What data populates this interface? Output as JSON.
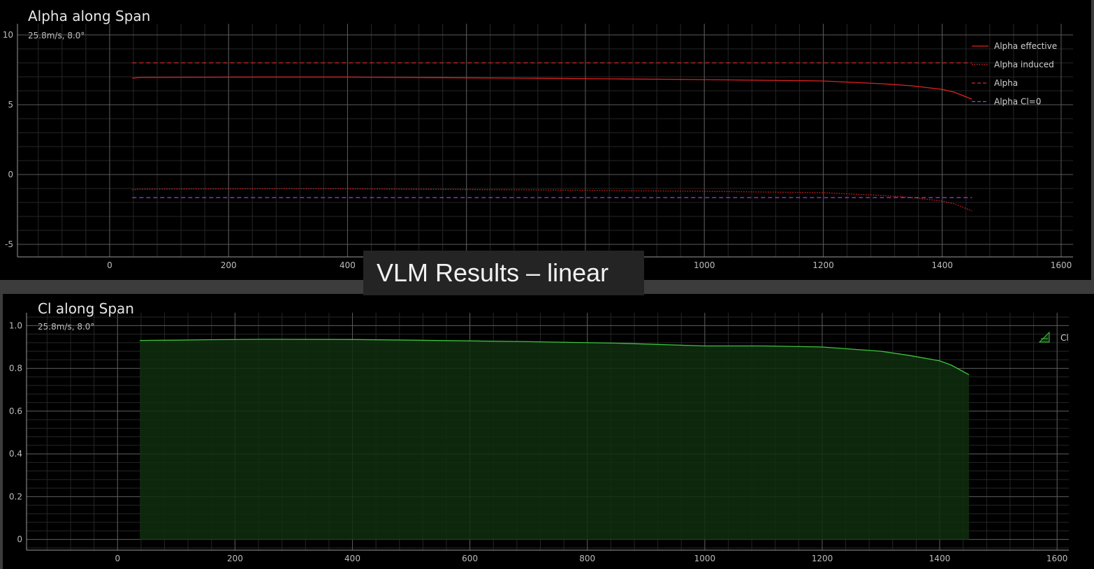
{
  "overlay": {
    "text": "VLM Results – linear"
  },
  "chart_data": [
    {
      "type": "line",
      "title": "Alpha along Span",
      "subtitle": "25.8m/s, 8.0°",
      "xlim": [
        -155,
        1620
      ],
      "ylim": [
        -5.9,
        10.8
      ],
      "x_ticks": [
        0,
        200,
        400,
        600,
        800,
        1000,
        1200,
        1400,
        1600
      ],
      "x_tick_labels": [
        "0",
        "200",
        "400",
        "600",
        "800",
        "1000",
        "1200",
        "1400",
        "1600"
      ],
      "y_ticks": [
        -5,
        0,
        5,
        10
      ],
      "y_tick_labels": [
        "-5",
        "0",
        "5",
        "10"
      ],
      "grid": true,
      "legend_position": "top-right",
      "series": [
        {
          "name": "Alpha effective",
          "color": "#e02020",
          "style": "solid",
          "x": [
            38,
            50,
            150,
            250,
            400,
            500,
            700,
            850,
            1000,
            1100,
            1200,
            1300,
            1350,
            1400,
            1420,
            1450
          ],
          "y": [
            6.9,
            6.95,
            6.97,
            6.98,
            6.98,
            6.95,
            6.9,
            6.85,
            6.8,
            6.75,
            6.7,
            6.5,
            6.35,
            6.1,
            5.9,
            5.4
          ]
        },
        {
          "name": "Alpha induced",
          "color": "#e02020",
          "style": "dotted",
          "x": [
            38,
            50,
            150,
            250,
            400,
            500,
            700,
            850,
            1000,
            1100,
            1200,
            1300,
            1350,
            1400,
            1420,
            1450
          ],
          "y": [
            -1.1,
            -1.05,
            -1.03,
            -1.02,
            -1.02,
            -1.05,
            -1.1,
            -1.15,
            -1.2,
            -1.25,
            -1.3,
            -1.5,
            -1.65,
            -1.9,
            -2.1,
            -2.6
          ]
        },
        {
          "name": "Alpha",
          "color": "#d42a2a",
          "style": "dashed",
          "x": [
            38,
            1450
          ],
          "y": [
            8.0,
            8.0
          ]
        },
        {
          "name": "Alpha Cl=0",
          "color": "#a040e0",
          "style": "dashed",
          "x": [
            38,
            1450
          ],
          "y": [
            -1.65,
            -1.65
          ]
        }
      ]
    },
    {
      "type": "area",
      "title": "Cl along Span",
      "subtitle": "25.8m/s, 8.0°",
      "xlim": [
        -155,
        1620
      ],
      "ylim": [
        -0.05,
        1.06
      ],
      "x_ticks": [
        0,
        200,
        400,
        600,
        800,
        1000,
        1200,
        1400,
        1600
      ],
      "x_tick_labels": [
        "0",
        "200",
        "400",
        "600",
        "800",
        "1000",
        "1200",
        "1400",
        "1600"
      ],
      "y_ticks": [
        0,
        0.2,
        0.4,
        0.6,
        0.8,
        1.0
      ],
      "y_tick_labels": [
        "0",
        "0.2",
        "0.4",
        "0.6",
        "0.8",
        "1.0"
      ],
      "grid": true,
      "legend_position": "top-right",
      "series": [
        {
          "name": "Cl",
          "color": "#3cc43c",
          "fill": "#0f2e0f",
          "x": [
            38,
            50,
            100,
            150,
            250,
            400,
            500,
            700,
            850,
            1000,
            1100,
            1200,
            1300,
            1350,
            1400,
            1420,
            1450
          ],
          "y": [
            0.93,
            0.931,
            0.932,
            0.934,
            0.936,
            0.935,
            0.932,
            0.925,
            0.918,
            0.905,
            0.905,
            0.9,
            0.88,
            0.86,
            0.835,
            0.815,
            0.77
          ]
        }
      ]
    }
  ]
}
